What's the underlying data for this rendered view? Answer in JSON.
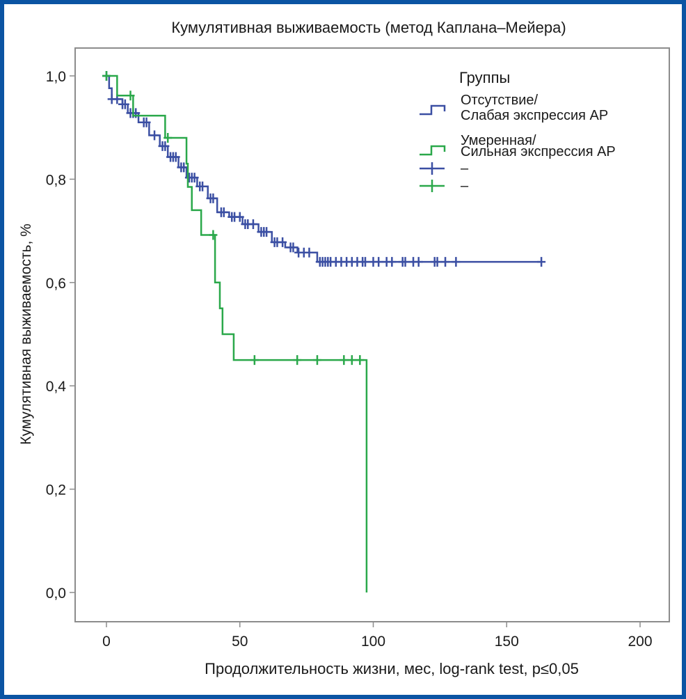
{
  "chart_data": {
    "type": "line",
    "subtype": "kaplan-meier-step",
    "title": "Кумулятивная выживаемость (метод Каплана–Мейера)",
    "xlabel": "Продолжительность жизни, мес, log-rank test, p≤0,05",
    "ylabel": "Кумулятивная выживаемость, %",
    "xlim": [
      0,
      200
    ],
    "ylim": [
      0,
      1.0
    ],
    "x_ticks": [
      0,
      50,
      100,
      150,
      200
    ],
    "x_tick_labels": [
      "0",
      "50",
      "100",
      "150",
      "200"
    ],
    "y_ticks": [
      0,
      0.2,
      0.4,
      0.6,
      0.8,
      1.0
    ],
    "y_tick_labels": [
      "0,0",
      "0,2",
      "0,4",
      "0,6",
      "0,8",
      "1,0"
    ],
    "grid": false,
    "legend": {
      "title": "Группы",
      "placement": "top-right",
      "entries": [
        {
          "label_lines": [
            "Отсутствие/",
            "Слабая экспрессия АР"
          ],
          "kind": "step",
          "color": "#3b4fa3"
        },
        {
          "label_lines": [
            "Умеренная/",
            "Сильная экспрессия АР"
          ],
          "kind": "step",
          "color": "#2aa84a"
        },
        {
          "label_lines": [
            "–"
          ],
          "kind": "censor",
          "color": "#3b4fa3"
        },
        {
          "label_lines": [
            "–"
          ],
          "kind": "censor",
          "color": "#2aa84a"
        }
      ]
    },
    "series": [
      {
        "name": "Отсутствие/Слабая экспрессия АР",
        "color": "#3b4fa3",
        "steps": [
          [
            0,
            1.0
          ],
          [
            1,
            0.976
          ],
          [
            2,
            0.955
          ],
          [
            6,
            0.945
          ],
          [
            8,
            0.928
          ],
          [
            12,
            0.91
          ],
          [
            16,
            0.885
          ],
          [
            20,
            0.864
          ],
          [
            23,
            0.843
          ],
          [
            27,
            0.823
          ],
          [
            30,
            0.803
          ],
          [
            34,
            0.786
          ],
          [
            38,
            0.763
          ],
          [
            41.5,
            0.736
          ],
          [
            46,
            0.727
          ],
          [
            51,
            0.713
          ],
          [
            57,
            0.698
          ],
          [
            62,
            0.678
          ],
          [
            67,
            0.668
          ],
          [
            71.6,
            0.658
          ],
          [
            79,
            0.64
          ]
        ],
        "end_time": 163,
        "censored": [
          0,
          2,
          4,
          6,
          7,
          9,
          10,
          11,
          14,
          15,
          18,
          21,
          22,
          24,
          25,
          26,
          28,
          29,
          31,
          32,
          33,
          35,
          36,
          39,
          40,
          43,
          44,
          47,
          48,
          50,
          52,
          53,
          55,
          58,
          59,
          60,
          63,
          64,
          66,
          69,
          70,
          72,
          74,
          76,
          80,
          81,
          82,
          83,
          84,
          86,
          88,
          90,
          92,
          94,
          96,
          97,
          100,
          102,
          105,
          107,
          111,
          112,
          115,
          117,
          123,
          124,
          127,
          131,
          163
        ]
      },
      {
        "name": "Умеренная/Сильная экспрессия АР",
        "color": "#2aa84a",
        "steps": [
          [
            0,
            1.0
          ],
          [
            4,
            0.962
          ],
          [
            10,
            0.923
          ],
          [
            22,
            0.88
          ],
          [
            30,
            0.83
          ],
          [
            30.5,
            0.785
          ],
          [
            32,
            0.74
          ],
          [
            35.5,
            0.692
          ],
          [
            40.7,
            0.6
          ],
          [
            42.5,
            0.55
          ],
          [
            43.5,
            0.5
          ],
          [
            47.7,
            0.45
          ],
          [
            97.5,
            0.0
          ]
        ],
        "end_time": 97.5,
        "censored": [
          0,
          9,
          23,
          40,
          55.5,
          71.5,
          79,
          89,
          92,
          95
        ]
      }
    ]
  }
}
